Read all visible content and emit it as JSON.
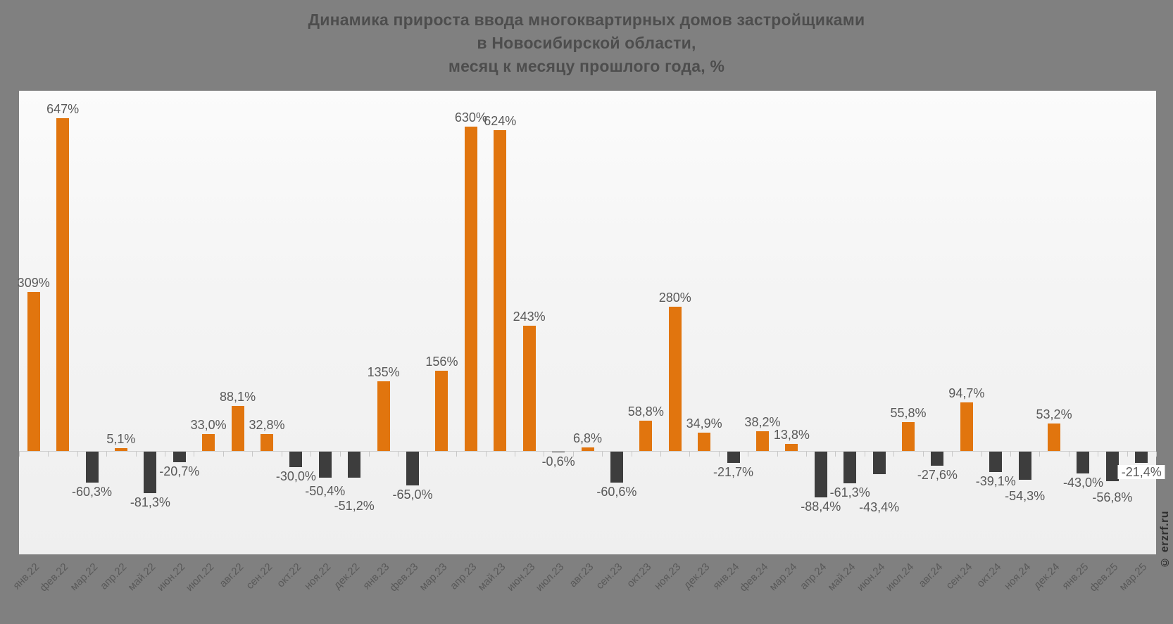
{
  "title_lines": [
    "Динамика прироста ввода многоквартирных домов застройщиками",
    "в Новосибирской области,",
    "месяц к месяцу прошлого года, %"
  ],
  "watermark": "© erzrf.ru",
  "chart_data": {
    "type": "bar",
    "title": "Динамика прироста ввода многоквартирных домов застройщиками в Новосибирской области, месяц к месяцу прошлого года, %",
    "xlabel": "",
    "ylabel": "%",
    "ylim": [
      -100,
      700
    ],
    "grid": false,
    "legend": null,
    "categories": [
      "янв.22",
      "фев.22",
      "мар.22",
      "апр.22",
      "май.22",
      "июн.22",
      "июл.22",
      "авг.22",
      "сен.22",
      "окт.22",
      "ноя.22",
      "дек.22",
      "янв.23",
      "фев.23",
      "мар.23",
      "апр.23",
      "май.23",
      "июн.23",
      "июл.23",
      "авг.23",
      "сен.23",
      "окт.23",
      "ноя.23",
      "дек.23",
      "янв.24",
      "фев.24",
      "мар.24",
      "апр.24",
      "май.24",
      "июн.24",
      "июл.24",
      "авг.24",
      "сен.24",
      "окт.24",
      "ноя.24",
      "дек.24",
      "янв.25",
      "фев.25",
      "мар.25"
    ],
    "values": [
      309,
      647,
      -60.3,
      5.1,
      -81.3,
      -20.7,
      33.0,
      88.1,
      32.8,
      -30.0,
      -50.4,
      -51.2,
      135,
      -65.0,
      156,
      630,
      624,
      243,
      -0.6,
      6.8,
      -60.6,
      58.8,
      280,
      34.9,
      -21.7,
      38.2,
      13.8,
      -88.4,
      -61.3,
      -43.4,
      55.8,
      -27.6,
      94.7,
      -39.1,
      -54.3,
      53.2,
      -43.0,
      -56.8,
      -21.4
    ],
    "value_labels": [
      "309%",
      "647%",
      "-60,3%",
      "5,1%",
      "-81,3%",
      "-20,7%",
      "33,0%",
      "88,1%",
      "32,8%",
      "-30,0%",
      "-50,4%",
      "-51,2%",
      "135%",
      "-65,0%",
      "156%",
      "630%",
      "624%",
      "243%",
      "-0,6%",
      "6,8%",
      "-60,6%",
      "58,8%",
      "280%",
      "34,9%",
      "-21,7%",
      "38,2%",
      "13,8%",
      "-88,4%",
      "-61,3%",
      "-43,4%",
      "55,8%",
      "-27,6%",
      "94,7%",
      "-39,1%",
      "-54,3%",
      "53,2%",
      "-43,0%",
      "-56,8%",
      "-21,4%"
    ],
    "boxed_label_indexes": [
      38
    ],
    "colors": {
      "positive_bar": "#E1750E",
      "negative_bar": "#3D3D3D",
      "label_text": "#595959",
      "axis_line": "#CCCCCC",
      "page_background": "#808080",
      "plot_background": "#F4F4F4",
      "title_text": "#4D4D4D"
    }
  }
}
